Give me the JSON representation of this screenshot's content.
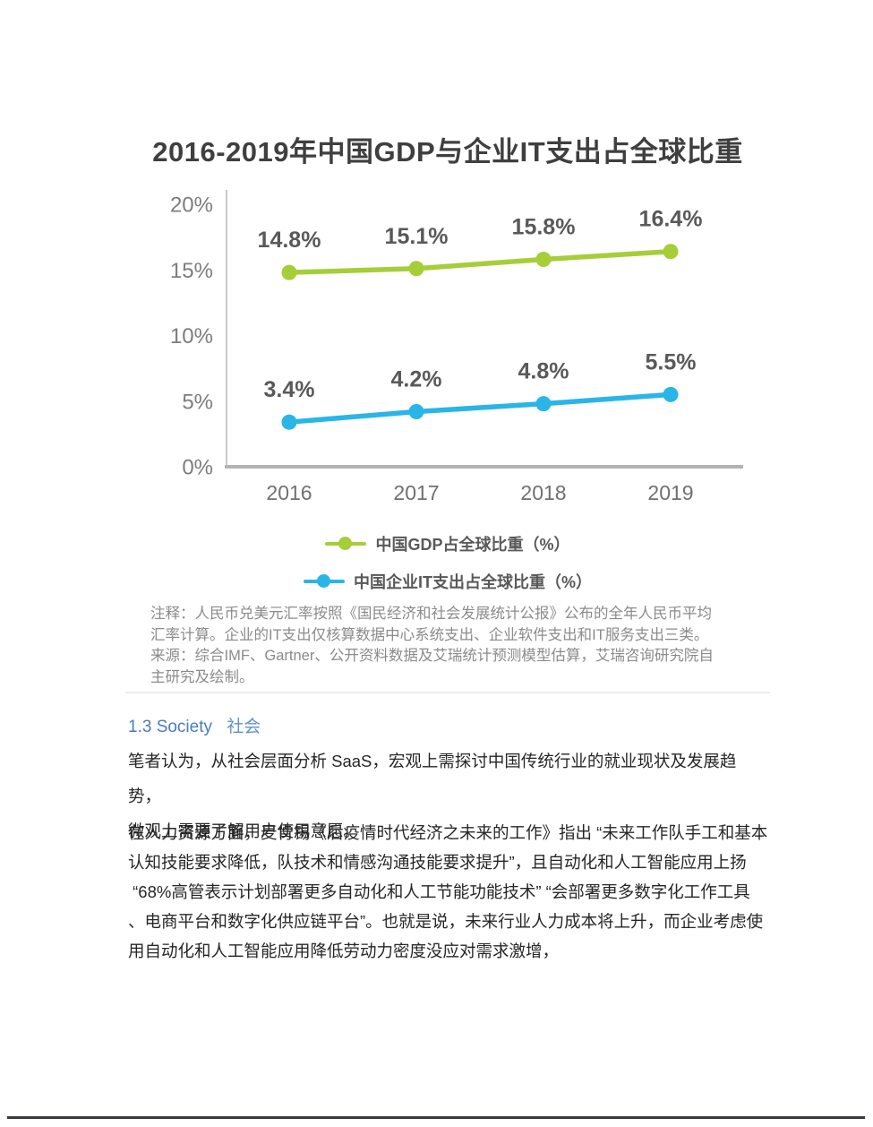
{
  "chart_data": {
    "type": "line",
    "title": "2016-2019年中国GDP与企业IT支出占全球比重",
    "categories": [
      "2016",
      "2017",
      "2018",
      "2019"
    ],
    "series": [
      {
        "name": "中国GDP占全球比重（%）",
        "color": "#a5ce39",
        "values": [
          14.8,
          15.1,
          15.8,
          16.4
        ],
        "labels": [
          "14.8%",
          "15.1%",
          "15.8%",
          "16.4%"
        ]
      },
      {
        "name": "中国企业IT支出占全球比重（%）",
        "color": "#29b5e8",
        "values": [
          3.4,
          4.2,
          4.8,
          5.5
        ],
        "labels": [
          "3.4%",
          "4.2%",
          "4.8%",
          "5.5%"
        ]
      }
    ],
    "xlabel": "",
    "ylabel": "",
    "ylim": [
      0,
      20
    ],
    "yticks": [
      20,
      15,
      10,
      5,
      0
    ],
    "ytick_labels": [
      "20%",
      "15%",
      "10%",
      "5%",
      "0%"
    ],
    "grid": false,
    "legend_position": "bottom",
    "data_labels_shown": true,
    "footnote_lines": [
      "注释：人民币兑美元汇率按照《国民经济和社会发展统计公报》公布的全年人民币平均",
      "汇率计算。企业的IT支出仅核算数据中心系统支出、企业软件支出和IT服务支出三类。",
      "来源：综合IMF、Gartner、公开资料数据及艾瑞统计预测模型估算，艾瑞咨询研究院自",
      "主研究及绘制。"
    ]
  },
  "section": {
    "number_title": "1.3 Society",
    "subtitle": "社会",
    "title_color": "#4a7cb8",
    "subtitle_color": "#5f93c8"
  },
  "paragraphs": {
    "p1_lines": [
      "笔者认为，从社会层面分析 SaaS，宏观上需探讨中国传统行业的就业现状及发展趋势，",
      "微观上需要了解用户使用意愿。"
    ],
    "p2_lines": [
      "在人力资源方面，麦肯锡《后疫情时代经济之未来的工作》指出 “未来工作队手工和基本",
      "认知技能要求降低，队技术和情感沟通技能要求提升”，且自动化和人工智能应用上扬",
      " “68%高管表示计划部署更多自动化和人工节能功能技术” “会部署更多数字化工作工具",
      "、电商平台和数字化供应链平台”。也就是说，未来行业人力成本将上升，而企业考虑使",
      "用自动化和人工智能应用降低劳动力密度没应对需求激增，"
    ]
  },
  "colors": {
    "gdp_series": "#a5ce39",
    "it_series": "#29b5e8",
    "axis": "#c6c6c6",
    "x_axis": "#b3b3b3",
    "data_label": "#595959",
    "tick_label": "#7d7d7d",
    "body_text": "#262626",
    "footnote_text": "#8b8b8b",
    "bottom_rule": "#3b3b3f"
  }
}
